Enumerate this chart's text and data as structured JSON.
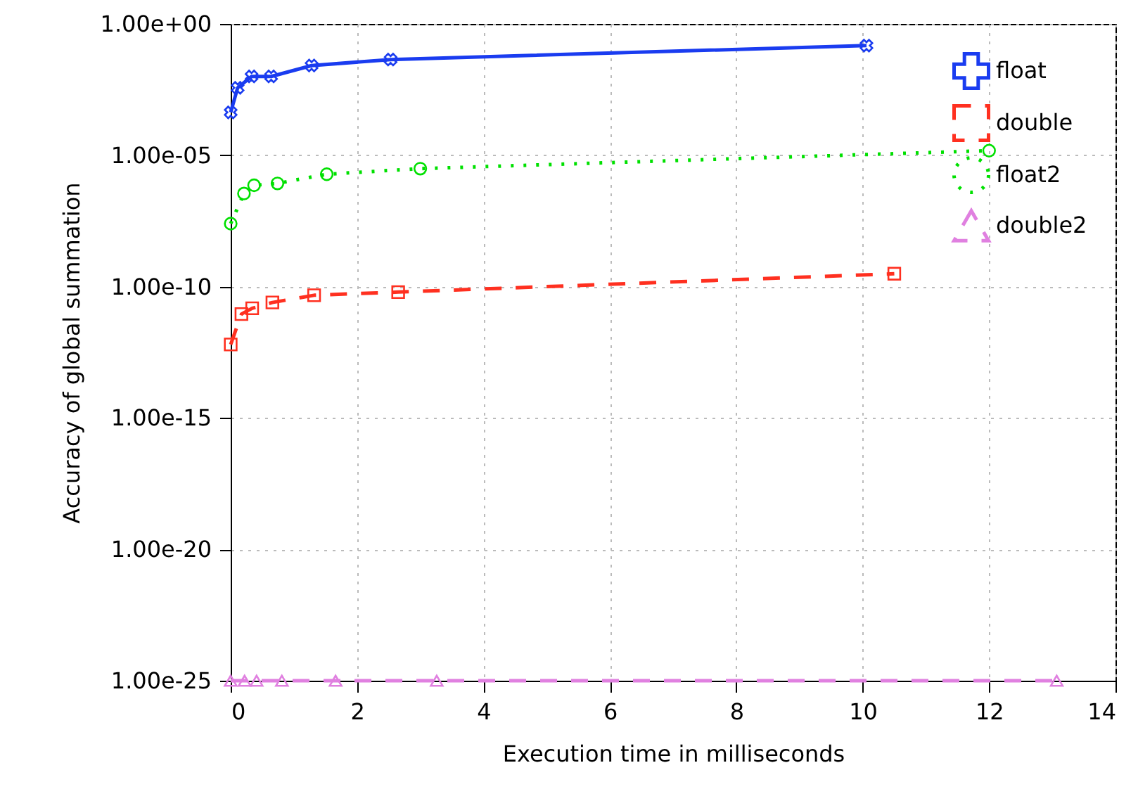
{
  "chart_data": {
    "type": "line",
    "xlabel": "Execution time in milliseconds",
    "ylabel": "Accuracy of global summation",
    "xlim": [
      0,
      14
    ],
    "xticks": [
      0,
      2,
      4,
      6,
      8,
      10,
      12,
      14
    ],
    "ylim": [
      1e-25,
      1
    ],
    "log": true,
    "yticks": [
      {
        "value": 1,
        "label": "1.00e+00"
      },
      {
        "value": 1e-05,
        "label": "1.00e-05"
      },
      {
        "value": 1e-10,
        "label": "1.00e-10"
      },
      {
        "value": 1e-15,
        "label": "1.00e-15"
      },
      {
        "value": 1e-20,
        "label": "1.00e-20"
      },
      {
        "value": 1e-25,
        "label": "1.00e-25"
      }
    ],
    "grid": true,
    "legend": "top right",
    "series": [
      {
        "name": "float",
        "color": "#1a3cf0",
        "marker": "cross",
        "line_style": "solid",
        "x": [
          0,
          0.11,
          0.33,
          0.64,
          1.28,
          2.53,
          10.06
        ],
        "values": [
          0.00043,
          0.0037,
          0.01,
          0.01,
          0.026,
          0.044,
          0.15
        ]
      },
      {
        "name": "double",
        "color": "#ff3020",
        "marker": "square",
        "line_style": "dashed",
        "x": [
          0,
          0.17,
          0.34,
          0.66,
          1.32,
          2.65,
          10.5
        ],
        "values": [
          6.3e-13,
          9e-12,
          1.5e-11,
          2.5e-11,
          4.7e-11,
          6.2e-11,
          3.1e-10
        ]
      },
      {
        "name": "float2",
        "color": "#00e000",
        "marker": "circle",
        "line_style": "dotted",
        "x": [
          0,
          0.21,
          0.37,
          0.74,
          1.52,
          3.0,
          12.0
        ],
        "values": [
          2.5e-08,
          3.5e-07,
          7.2e-07,
          8.5e-07,
          1.9e-06,
          3.1e-06,
          1.5e-05
        ]
      },
      {
        "name": "double2",
        "color": "#e080e0",
        "marker": "triangle",
        "line_style": "dashed",
        "x": [
          0,
          0.22,
          0.41,
          0.81,
          1.66,
          3.26,
          13.07
        ],
        "values": [
          1e-25,
          1e-25,
          1e-25,
          1e-25,
          1e-25,
          1e-25,
          1e-25
        ]
      }
    ]
  }
}
